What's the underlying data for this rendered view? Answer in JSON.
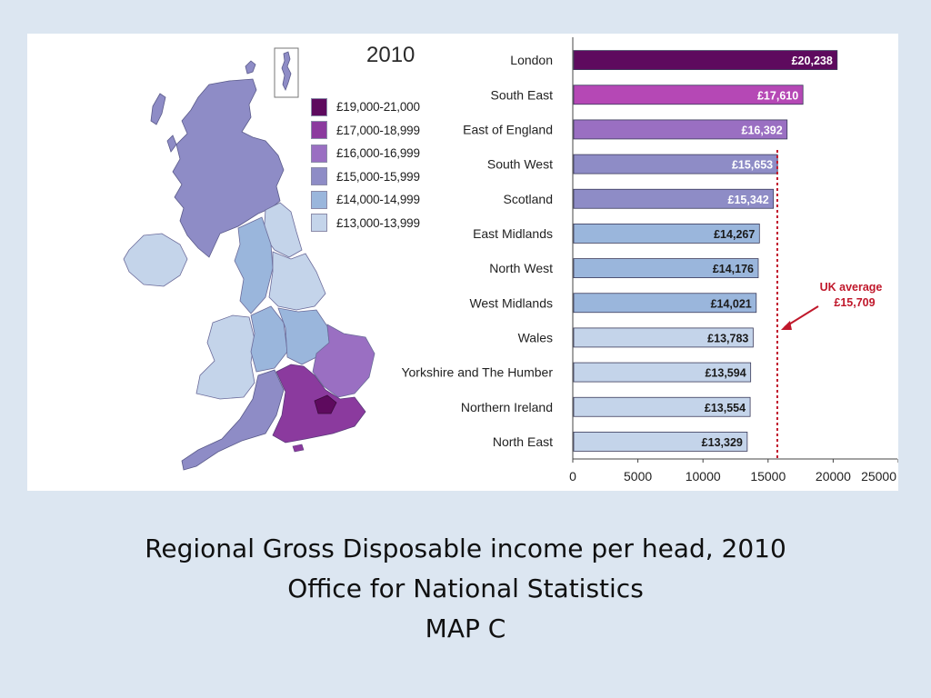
{
  "map": {
    "year": "2010",
    "legend": [
      {
        "label": "£19,000-21,000",
        "color": "#5e0a5e"
      },
      {
        "label": "£17,000-18,999",
        "color": "#8b3a9e"
      },
      {
        "label": "£16,000-16,999",
        "color": "#9a6fc2"
      },
      {
        "label": "£15,000-15,999",
        "color": "#8e8cc6"
      },
      {
        "label": "£14,000-14,999",
        "color": "#9ab6dc"
      },
      {
        "label": "£13,000-13,999",
        "color": "#c4d4ea"
      }
    ]
  },
  "chart_data": {
    "type": "bar",
    "orientation": "horizontal",
    "categories": [
      "London",
      "South East",
      "East of England",
      "South West",
      "Scotland",
      "East Midlands",
      "North West",
      "West Midlands",
      "Wales",
      "Yorkshire and The Humber",
      "Northern Ireland",
      "North East"
    ],
    "values": [
      20238,
      17610,
      16392,
      15653,
      15342,
      14267,
      14176,
      14021,
      13783,
      13594,
      13554,
      13329
    ],
    "value_labels": [
      "£20,238",
      "£17,610",
      "£16,392",
      "£15,653",
      "£15,342",
      "£14,267",
      "£14,176",
      "£14,021",
      "£13,783",
      "£13,594",
      "£13,554",
      "£13,329"
    ],
    "bar_colors": [
      "#5e0a5e",
      "#b548b5",
      "#9a6fc2",
      "#8e8cc6",
      "#8e8cc6",
      "#9ab6dc",
      "#9ab6dc",
      "#9ab6dc",
      "#c4d4ea",
      "#c4d4ea",
      "#c4d4ea",
      "#c4d4ea"
    ],
    "xlim": [
      0,
      25000
    ],
    "xticks": [
      "0",
      "5000",
      "10000",
      "15000",
      "20000",
      "25000"
    ],
    "xtick_values": [
      0,
      5000,
      10000,
      15000,
      20000,
      25000
    ],
    "reference_line": {
      "value": 15709,
      "label_line1": "UK average",
      "label_line2": "£15,709",
      "color": "#c0182b"
    },
    "grid": false
  },
  "caption": {
    "line1": "Regional Gross Disposable income per head, 2010",
    "line2": "Office for National Statistics",
    "line3": "MAP C"
  }
}
